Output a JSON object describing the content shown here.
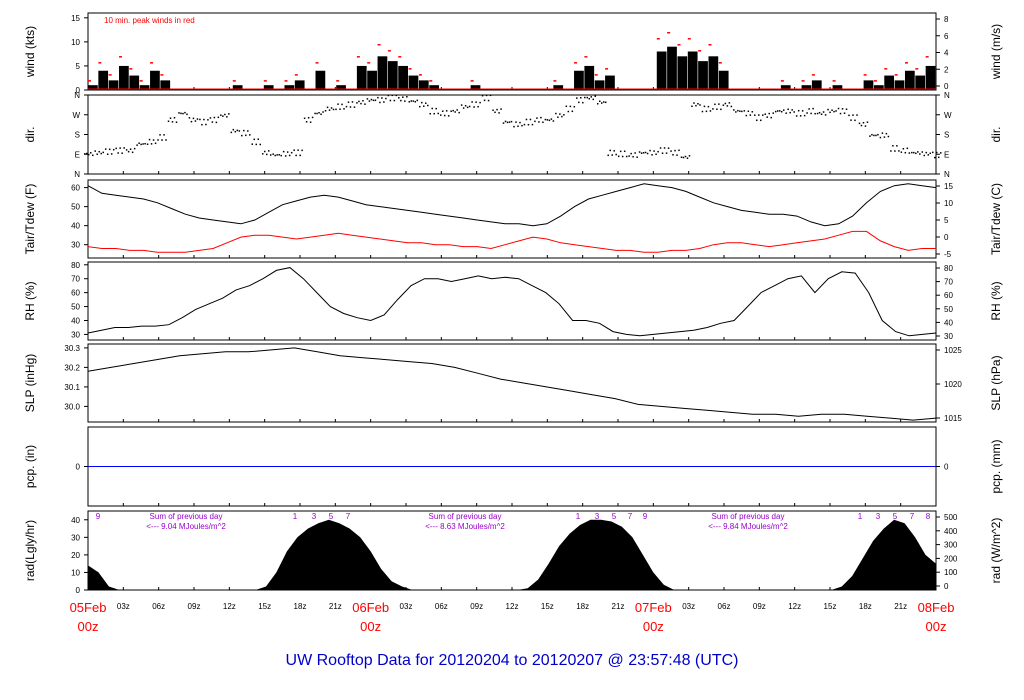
{
  "title": "UW Rooftop Data for 20120204  to  20120207 @ 23:57:48  (UTC)",
  "colors": {
    "black": "#000000",
    "red": "#ff0000",
    "blue": "#0000ff",
    "purple": "#9900cc",
    "title_blue": "#0000cc",
    "date_red": "#ff0000"
  },
  "x_axis": {
    "hour_ticks": [
      "03z",
      "06z",
      "09z",
      "12z",
      "15z",
      "18z",
      "21z",
      "03z",
      "06z",
      "09z",
      "12z",
      "15z",
      "18z",
      "21z",
      "03z",
      "06z",
      "09z",
      "12z",
      "15z",
      "18z",
      "21z"
    ],
    "day_labels": [
      {
        "top": "05Feb",
        "bottom": "00z"
      },
      {
        "top": "06Feb",
        "bottom": "00z"
      },
      {
        "top": "07Feb",
        "bottom": "00z"
      },
      {
        "top": "08Feb",
        "bottom": "00z"
      }
    ]
  },
  "chart_data": [
    {
      "type": "line",
      "ylabel": "wind (kts)",
      "ylabel_right": "wind (m/s)",
      "yticks": [
        0,
        5,
        10,
        15
      ],
      "yticks_right": [
        0,
        2,
        4,
        6,
        8
      ],
      "ylim": [
        0,
        16
      ],
      "annotation": "10 min. peak winds in red",
      "series": [],
      "values": [
        1,
        4,
        2,
        5,
        3,
        1,
        4,
        2,
        0,
        0,
        0,
        0,
        0,
        0,
        1,
        0,
        0,
        1,
        0,
        1,
        2,
        0,
        4,
        0,
        1,
        0,
        5,
        4,
        7,
        6,
        5,
        3,
        2,
        1,
        0,
        0,
        0,
        1,
        0,
        0,
        0,
        0,
        0,
        0,
        0,
        1,
        0,
        4,
        5,
        2,
        3,
        0,
        0,
        0,
        0,
        8,
        9,
        7,
        8,
        6,
        7,
        4,
        0,
        0,
        0,
        0,
        0,
        1,
        0,
        1,
        2,
        0,
        1,
        0,
        0,
        2,
        1,
        3,
        2,
        4,
        3,
        5
      ]
    },
    {
      "type": "scatter",
      "ylabel": "dir.",
      "ylabel_right": "dir.",
      "yticks": [
        "N",
        "E",
        "S",
        "W",
        "N"
      ],
      "yticks_right": [
        "N",
        "E",
        "S",
        "W",
        "N"
      ],
      "ylim": [
        0,
        360
      ],
      "values": [
        95,
        100,
        105,
        110,
        110,
        140,
        150,
        170,
        250,
        280,
        250,
        240,
        250,
        270,
        200,
        190,
        150,
        100,
        90,
        95,
        100,
        250,
        280,
        300,
        310,
        320,
        330,
        340,
        340,
        350,
        345,
        335,
        320,
        290,
        280,
        290,
        310,
        320,
        350,
        290,
        240,
        230,
        240,
        250,
        250,
        270,
        300,
        340,
        350,
        330,
        100,
        95,
        90,
        100,
        100,
        110,
        100,
        80,
        320,
        300,
        310,
        320,
        290,
        280,
        260,
        270,
        290,
        290,
        280,
        290,
        280,
        290,
        290,
        260,
        230,
        180,
        180,
        120,
        110,
        100,
        95,
        90
      ]
    },
    {
      "type": "line",
      "ylabel": "Tair/Tdew (F)",
      "ylabel_right": "Tair/Tdew (C)",
      "yticks": [
        30,
        40,
        50,
        60
      ],
      "yticks_right": [
        -5,
        0,
        5,
        10,
        15
      ],
      "ylim": [
        23,
        64
      ],
      "series": [
        {
          "values": [
            61,
            57,
            56,
            55,
            54,
            52,
            49,
            46,
            44,
            43,
            42,
            41,
            43,
            47,
            51,
            53,
            55,
            56,
            55,
            53,
            51,
            50,
            49,
            48,
            47,
            46,
            45,
            44,
            43,
            42,
            41,
            41,
            40,
            41,
            45,
            50,
            54,
            56,
            58,
            60,
            62,
            61,
            60,
            58,
            55,
            52,
            50,
            48,
            47,
            46,
            46,
            45,
            42,
            40,
            41,
            45,
            52,
            58,
            61,
            62,
            61,
            60
          ]
        },
        {
          "values": [
            29,
            28,
            28,
            27,
            27,
            26,
            26,
            26,
            27,
            28,
            31,
            34,
            35,
            35,
            34,
            33,
            34,
            35,
            36,
            35,
            34,
            33,
            32,
            31,
            31,
            30,
            30,
            29,
            29,
            28,
            30,
            32,
            34,
            33,
            31,
            30,
            29,
            28,
            27,
            27,
            26,
            26,
            27,
            27,
            28,
            30,
            31,
            31,
            30,
            29,
            30,
            31,
            32,
            33,
            35,
            37,
            37,
            32,
            29,
            27,
            28,
            28
          ]
        }
      ]
    },
    {
      "type": "line",
      "ylabel": "RH (%)",
      "ylabel_right": "RH (%)",
      "yticks": [
        30,
        40,
        50,
        60,
        70,
        80
      ],
      "yticks_right": [
        30,
        40,
        50,
        60,
        70,
        80
      ],
      "ylim": [
        26,
        82
      ],
      "values": [
        31,
        33,
        35,
        35,
        36,
        36,
        37,
        42,
        48,
        52,
        56,
        62,
        65,
        70,
        76,
        78,
        70,
        60,
        50,
        45,
        42,
        40,
        44,
        55,
        65,
        70,
        70,
        68,
        70,
        72,
        70,
        71,
        70,
        65,
        60,
        52,
        40,
        40,
        38,
        32,
        30,
        29,
        30,
        31,
        32,
        33,
        35,
        38,
        40,
        50,
        60,
        65,
        70,
        72,
        60,
        70,
        75,
        74,
        60,
        40,
        32,
        29,
        30,
        31
      ]
    },
    {
      "type": "line",
      "ylabel": "SLP (inHg)",
      "ylabel_right": "SLP (hPa)",
      "yticks": [
        30.0,
        30.1,
        30.2,
        30.3
      ],
      "yticks_right": [
        1015,
        1020,
        1025
      ],
      "ylim": [
        29.92,
        30.32
      ],
      "values": [
        30.18,
        30.2,
        30.22,
        30.24,
        30.26,
        30.27,
        30.28,
        30.28,
        30.29,
        30.3,
        30.28,
        30.26,
        30.25,
        30.24,
        30.23,
        30.22,
        30.2,
        30.17,
        30.14,
        30.12,
        30.1,
        30.08,
        30.06,
        30.04,
        30.01,
        30.0,
        29.99,
        29.98,
        29.97,
        29.96,
        29.96,
        29.95,
        29.96,
        29.96,
        29.95,
        29.94,
        29.93,
        29.94
      ]
    },
    {
      "type": "line",
      "ylabel": "pcp. (in)",
      "ylabel_right": "pcp. (mm)",
      "yticks": [
        0
      ],
      "yticks_right": [
        0
      ],
      "ylim": [
        -0.1,
        0.1
      ],
      "values": [
        0,
        0
      ]
    },
    {
      "type": "area",
      "ylabel": "rad(Lgly/hr)",
      "ylabel_right": "rad (W/m^2)",
      "yticks": [
        0,
        10,
        20,
        30,
        40
      ],
      "yticks_right": [
        0,
        100,
        200,
        300,
        400,
        500
      ],
      "ylim": [
        0,
        45
      ],
      "annotations": [
        {
          "text": "Sum of previous day",
          "sub": "<--- 9.04 MJoules/m^2"
        },
        {
          "text": "Sum of previous day",
          "sub": "<--- 8.63 MJoules/m^2"
        },
        {
          "text": "Sum of previous day",
          "sub": "<--- 9.84 MJoules/m^2"
        }
      ],
      "hour_marks": [
        "9",
        "1",
        "3",
        "5",
        "7",
        "1",
        "3",
        "5",
        "7",
        "9",
        "1",
        "3",
        "5",
        "7",
        "8"
      ],
      "values": [
        14,
        10,
        2,
        0,
        0,
        0,
        0,
        0,
        0,
        0,
        0,
        0,
        0,
        0,
        0,
        0,
        0,
        2,
        10,
        22,
        30,
        35,
        38,
        40,
        38,
        35,
        30,
        22,
        12,
        5,
        2,
        0,
        0,
        0,
        0,
        0,
        0,
        0,
        0,
        0,
        0,
        0,
        1,
        6,
        15,
        25,
        32,
        37,
        40,
        40,
        39,
        36,
        30,
        20,
        10,
        3,
        0,
        0,
        0,
        0,
        0,
        0,
        0,
        0,
        0,
        0,
        0,
        0,
        0,
        0,
        0,
        0,
        2,
        8,
        18,
        28,
        35,
        40,
        38,
        30,
        20,
        15
      ]
    }
  ]
}
